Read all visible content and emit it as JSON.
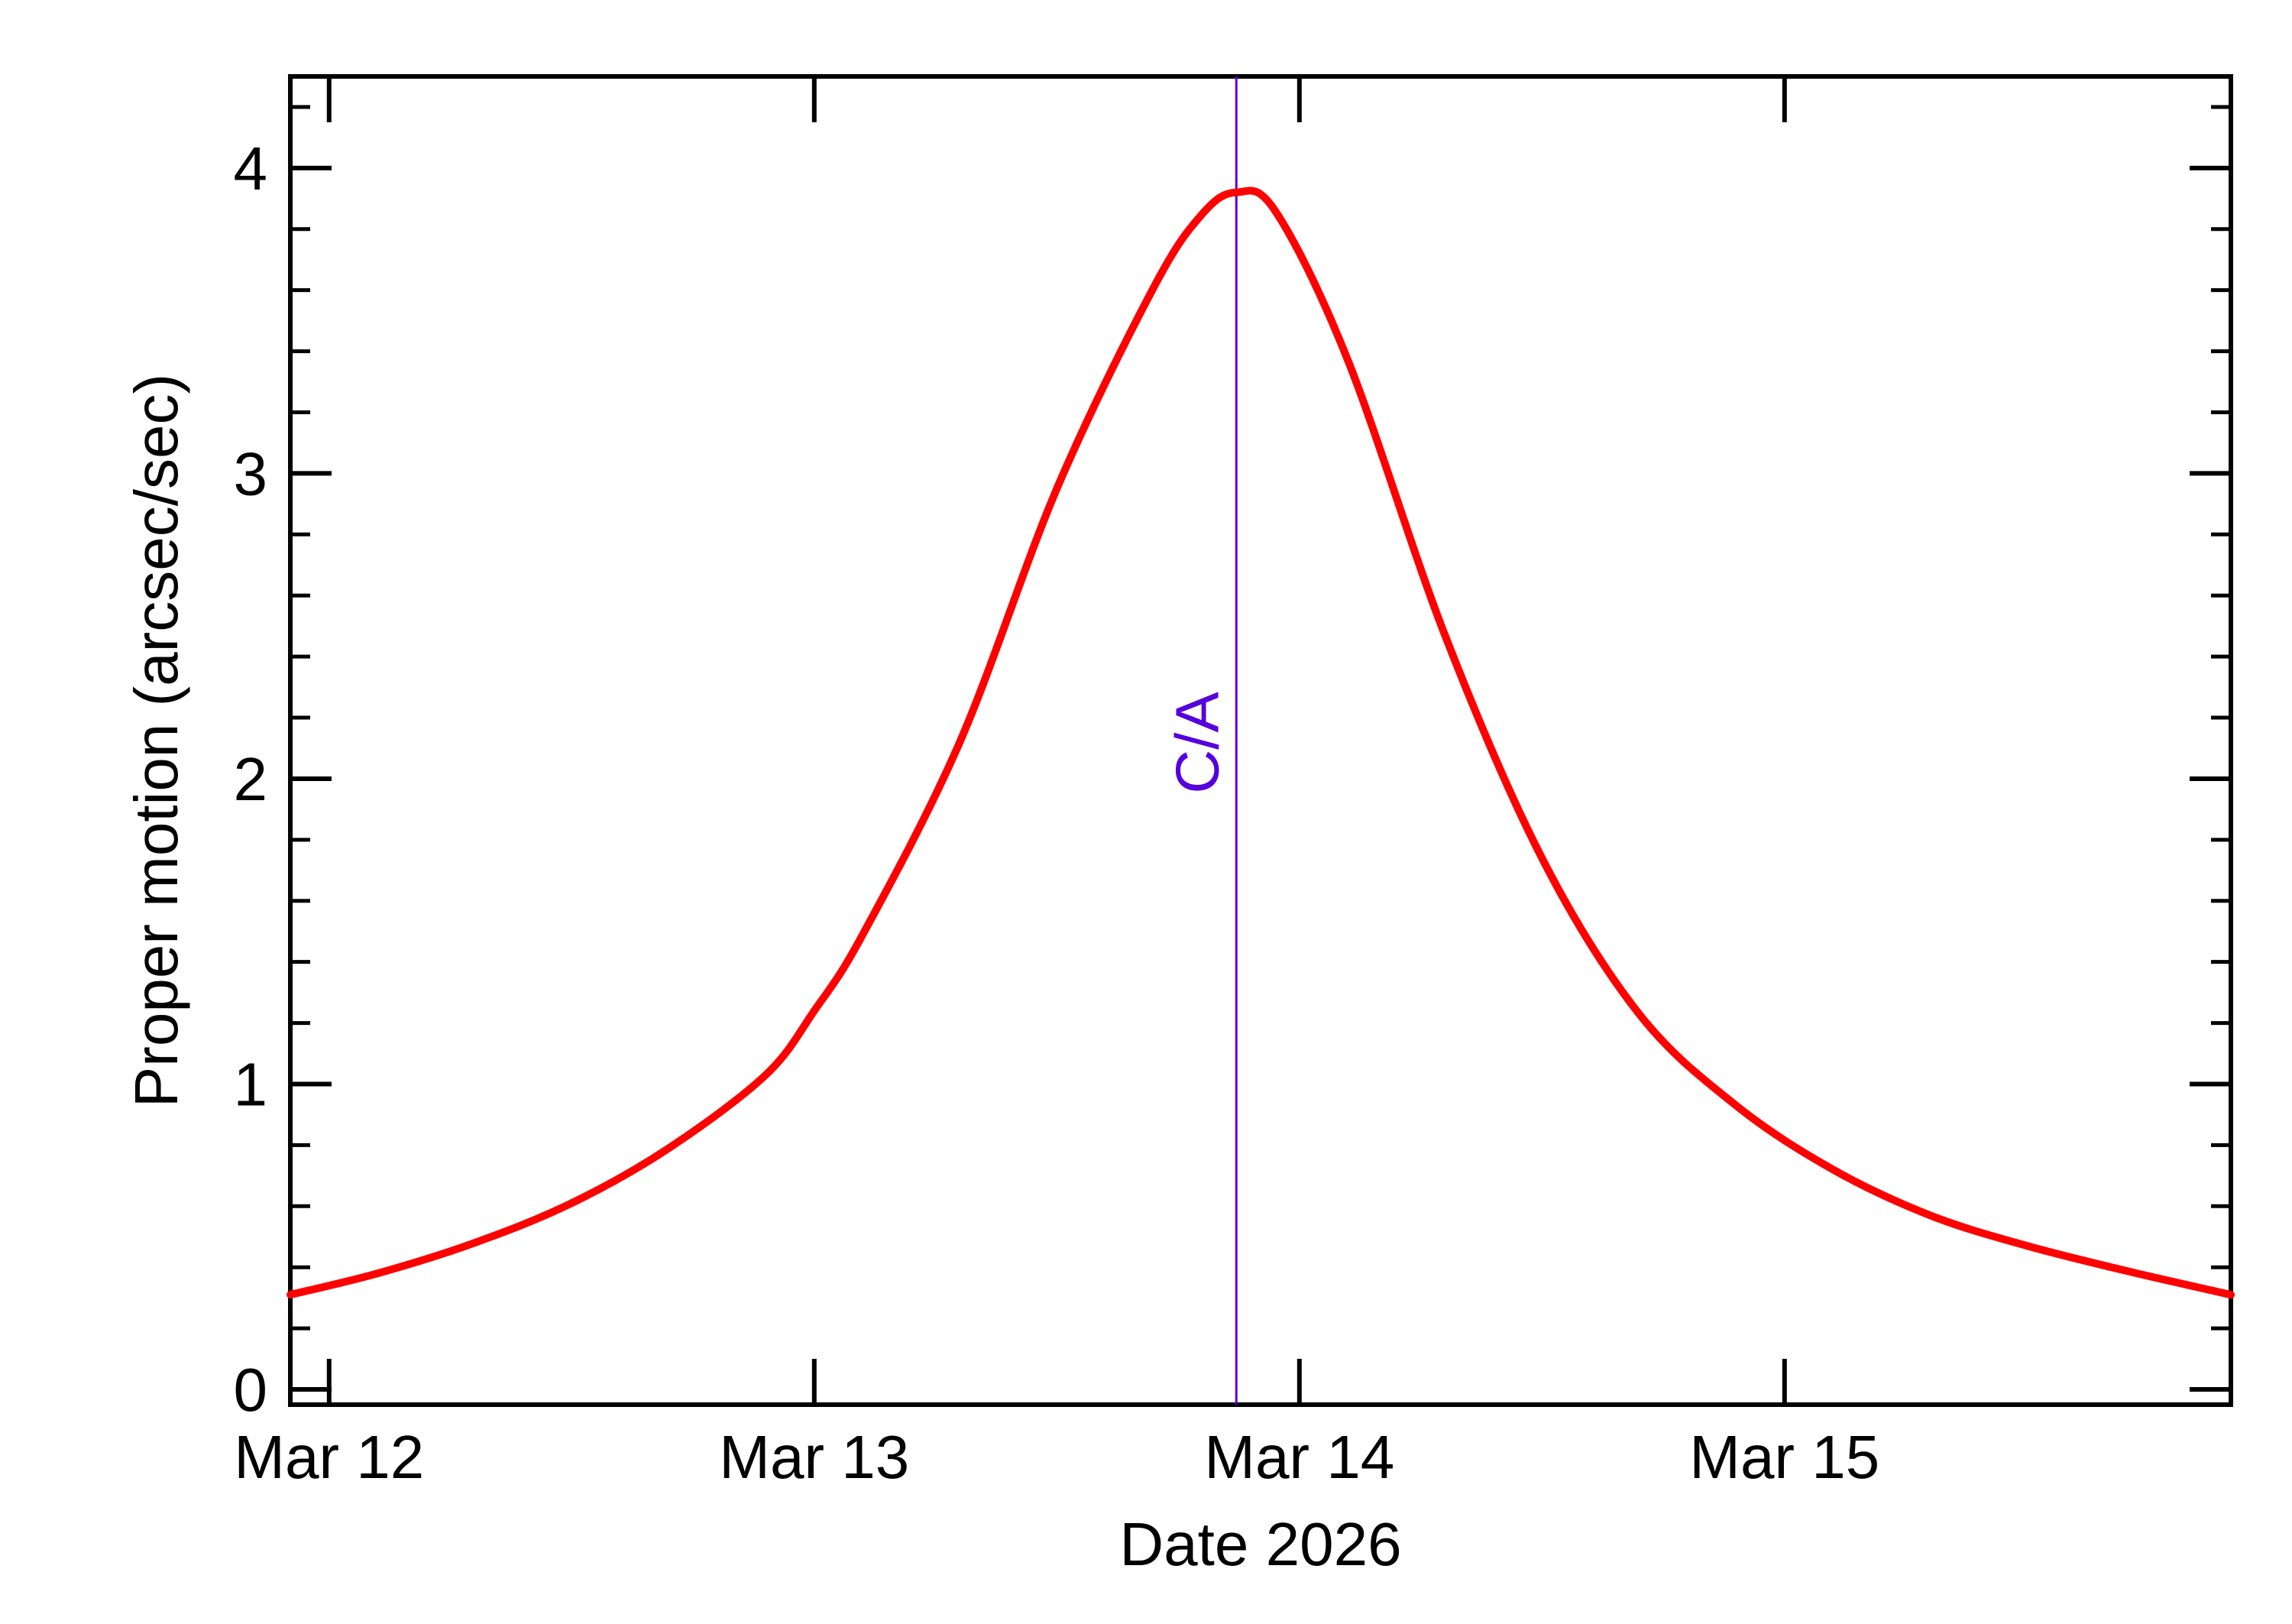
{
  "chart_data": {
    "type": "line",
    "xlabel": "Date 2026",
    "ylabel": "Proper motion (arcsec/sec)",
    "xlim": [
      -0.08,
      3.92
    ],
    "ylim": [
      -0.05,
      4.3
    ],
    "x_ticks": [
      {
        "value": 0,
        "label": "Mar 12"
      },
      {
        "value": 1,
        "label": "Mar 13"
      },
      {
        "value": 2,
        "label": "Mar 14"
      },
      {
        "value": 3,
        "label": "Mar 15"
      }
    ],
    "y_ticks": [
      {
        "value": 0,
        "label": "0"
      },
      {
        "value": 1,
        "label": "1"
      },
      {
        "value": 2,
        "label": "2"
      },
      {
        "value": 3,
        "label": "3"
      },
      {
        "value": 4,
        "label": "4"
      }
    ],
    "series": [
      {
        "color": "#ff0000",
        "x": [
          -0.08,
          0.1,
          0.3,
          0.5,
          0.7,
          0.9,
          1.0,
          1.1,
          1.3,
          1.5,
          1.7,
          1.8,
          1.87,
          1.95,
          2.1,
          2.3,
          2.5,
          2.7,
          2.9,
          3.1,
          3.3,
          3.5,
          3.7,
          3.92
        ],
        "y": [
          0.31,
          0.38,
          0.48,
          0.61,
          0.79,
          1.03,
          1.24,
          1.49,
          2.12,
          2.95,
          3.61,
          3.85,
          3.92,
          3.86,
          3.37,
          2.47,
          1.74,
          1.23,
          0.93,
          0.72,
          0.57,
          0.47,
          0.39,
          0.31
        ]
      }
    ],
    "annotations": [
      {
        "label": "C/A",
        "x": 1.87,
        "color": "#5500dd"
      }
    ],
    "grid": false,
    "line_color": "#ff0000"
  }
}
